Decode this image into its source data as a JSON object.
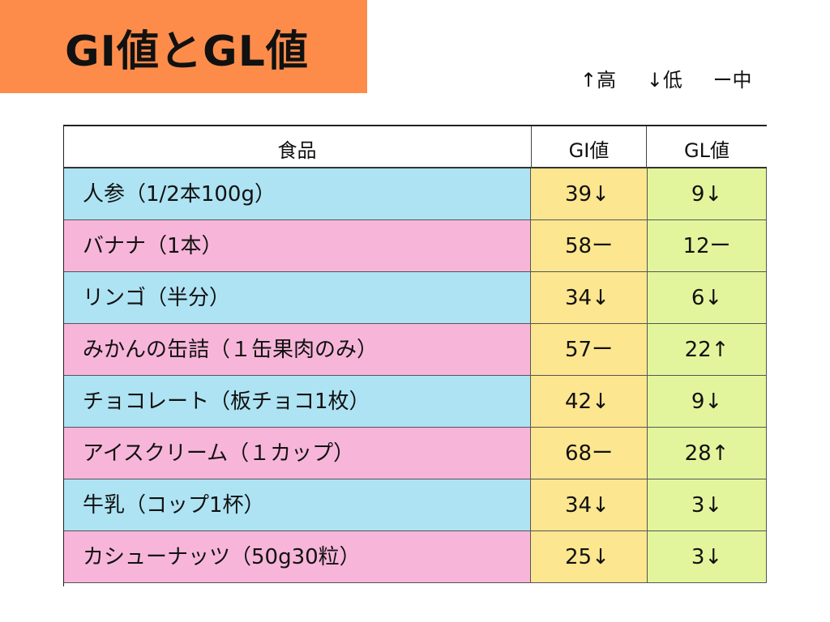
{
  "title": "GI値とGL値",
  "legend": [
    "↑高",
    "↓低",
    "ー中"
  ],
  "table": {
    "headers": {
      "food": "食品",
      "gi": "GI値",
      "gl": "GL値"
    },
    "rows": [
      {
        "food": "人参（1/2本100g）",
        "gi": "39↓",
        "gl": "9↓"
      },
      {
        "food": "バナナ（1本）",
        "gi": "58ー",
        "gl": "12ー"
      },
      {
        "food": "リンゴ（半分）",
        "gi": "34↓",
        "gl": "6↓"
      },
      {
        "food": "みかんの缶詰（１缶果肉のみ）",
        "gi": "57ー",
        "gl": "22↑"
      },
      {
        "food": "チョコレート（板チョコ1枚）",
        "gi": "42↓",
        "gl": "9↓"
      },
      {
        "food": "アイスクリーム（１カップ）",
        "gi": "68ー",
        "gl": "28↑"
      },
      {
        "food": "牛乳（コップ1杯）",
        "gi": "34↓",
        "gl": "3↓"
      },
      {
        "food": "カシューナッツ（50g30粒）",
        "gi": "25↓",
        "gl": "3↓"
      }
    ]
  },
  "colors": {
    "title_bg": "#fd8c4b",
    "food_blue": "#aee3f3",
    "food_pink": "#f7b6d9",
    "gi_col": "#fce68f",
    "gl_col": "#e3f59c"
  }
}
